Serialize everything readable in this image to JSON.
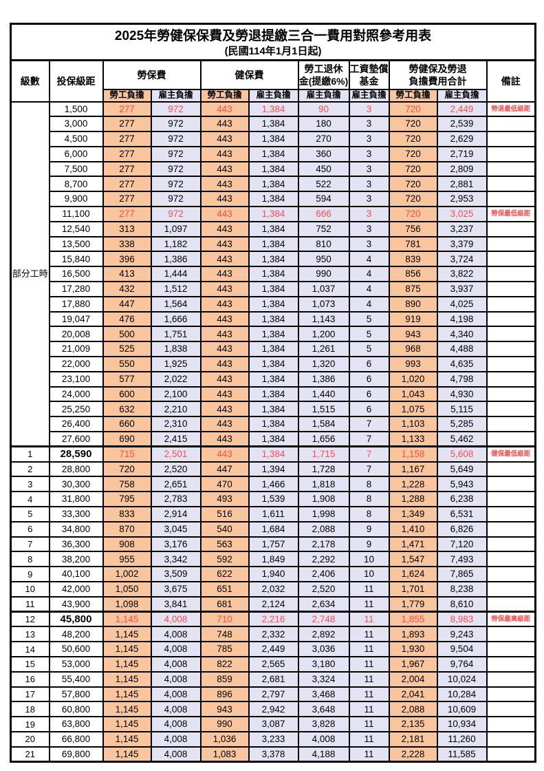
{
  "page": {
    "title": "2025年勞健保保費及勞退提繳三合一費用對照參考用表",
    "subtitle": "(民國114年1月1日起)"
  },
  "colors": {
    "employee_bg": "#F9C59C",
    "employer_bg": "#E3E3F3",
    "highlight_red": "#FF4C4C"
  },
  "table": {
    "headers": {
      "level": "級數",
      "salary": "投保級距",
      "labor_insurance": "勞保費",
      "health_insurance": "健保費",
      "pension_line1": "勞工退休",
      "pension_line2": "金(提繳6%)",
      "wage_fund_line1": "工資墊償",
      "wage_fund_line2": "基金",
      "total_line1": "勞健保及勞退",
      "total_line2": "負擔費用合計",
      "remark": "備註",
      "employee": "勞工負擔",
      "employer": "雇主負擔"
    },
    "group": {
      "label": "部分工時",
      "rowspan": 23
    },
    "rows": [
      {
        "level": "",
        "salary": "1,500",
        "li_emp": "277",
        "li_er": "972",
        "hi_emp": "443",
        "hi_er": "1,384",
        "pr_er": "90",
        "wf_er": "3",
        "tot_emp": "720",
        "tot_er": "2,449",
        "note": "勞退最低級距",
        "red": true
      },
      {
        "level": "",
        "salary": "3,000",
        "li_emp": "277",
        "li_er": "972",
        "hi_emp": "443",
        "hi_er": "1,384",
        "pr_er": "180",
        "wf_er": "3",
        "tot_emp": "720",
        "tot_er": "2,539",
        "note": ""
      },
      {
        "level": "",
        "salary": "4,500",
        "li_emp": "277",
        "li_er": "972",
        "hi_emp": "443",
        "hi_er": "1,384",
        "pr_er": "270",
        "wf_er": "3",
        "tot_emp": "720",
        "tot_er": "2,629",
        "note": ""
      },
      {
        "level": "",
        "salary": "6,000",
        "li_emp": "277",
        "li_er": "972",
        "hi_emp": "443",
        "hi_er": "1,384",
        "pr_er": "360",
        "wf_er": "3",
        "tot_emp": "720",
        "tot_er": "2,719",
        "note": ""
      },
      {
        "level": "",
        "salary": "7,500",
        "li_emp": "277",
        "li_er": "972",
        "hi_emp": "443",
        "hi_er": "1,384",
        "pr_er": "450",
        "wf_er": "3",
        "tot_emp": "720",
        "tot_er": "2,809",
        "note": ""
      },
      {
        "level": "",
        "salary": "8,700",
        "li_emp": "277",
        "li_er": "972",
        "hi_emp": "443",
        "hi_er": "1,384",
        "pr_er": "522",
        "wf_er": "3",
        "tot_emp": "720",
        "tot_er": "2,881",
        "note": ""
      },
      {
        "level": "",
        "salary": "9,900",
        "li_emp": "277",
        "li_er": "972",
        "hi_emp": "443",
        "hi_er": "1,384",
        "pr_er": "594",
        "wf_er": "3",
        "tot_emp": "720",
        "tot_er": "2,953",
        "note": ""
      },
      {
        "level": "",
        "salary": "11,100",
        "li_emp": "277",
        "li_er": "972",
        "hi_emp": "443",
        "hi_er": "1,384",
        "pr_er": "666",
        "wf_er": "3",
        "tot_emp": "720",
        "tot_er": "3,025",
        "note": "勞保最低級距",
        "red": true
      },
      {
        "level": "",
        "salary": "12,540",
        "li_emp": "313",
        "li_er": "1,097",
        "hi_emp": "443",
        "hi_er": "1,384",
        "pr_er": "752",
        "wf_er": "3",
        "tot_emp": "756",
        "tot_er": "3,237",
        "note": ""
      },
      {
        "level": "",
        "salary": "13,500",
        "li_emp": "338",
        "li_er": "1,182",
        "hi_emp": "443",
        "hi_er": "1,384",
        "pr_er": "810",
        "wf_er": "3",
        "tot_emp": "781",
        "tot_er": "3,379",
        "note": ""
      },
      {
        "level": "",
        "salary": "15,840",
        "li_emp": "396",
        "li_er": "1,386",
        "hi_emp": "443",
        "hi_er": "1,384",
        "pr_er": "950",
        "wf_er": "4",
        "tot_emp": "839",
        "tot_er": "3,724",
        "note": ""
      },
      {
        "level": "",
        "salary": "16,500",
        "li_emp": "413",
        "li_er": "1,444",
        "hi_emp": "443",
        "hi_er": "1,384",
        "pr_er": "990",
        "wf_er": "4",
        "tot_emp": "856",
        "tot_er": "3,822",
        "note": ""
      },
      {
        "level": "",
        "salary": "17,280",
        "li_emp": "432",
        "li_er": "1,512",
        "hi_emp": "443",
        "hi_er": "1,384",
        "pr_er": "1,037",
        "wf_er": "4",
        "tot_emp": "875",
        "tot_er": "3,937",
        "note": ""
      },
      {
        "level": "",
        "salary": "17,880",
        "li_emp": "447",
        "li_er": "1,564",
        "hi_emp": "443",
        "hi_er": "1,384",
        "pr_er": "1,073",
        "wf_er": "4",
        "tot_emp": "890",
        "tot_er": "4,025",
        "note": ""
      },
      {
        "level": "",
        "salary": "19,047",
        "li_emp": "476",
        "li_er": "1,666",
        "hi_emp": "443",
        "hi_er": "1,384",
        "pr_er": "1,143",
        "wf_er": "5",
        "tot_emp": "919",
        "tot_er": "4,198",
        "note": ""
      },
      {
        "level": "",
        "salary": "20,008",
        "li_emp": "500",
        "li_er": "1,751",
        "hi_emp": "443",
        "hi_er": "1,384",
        "pr_er": "1,200",
        "wf_er": "5",
        "tot_emp": "943",
        "tot_er": "4,340",
        "note": ""
      },
      {
        "level": "",
        "salary": "21,009",
        "li_emp": "525",
        "li_er": "1,838",
        "hi_emp": "443",
        "hi_er": "1,384",
        "pr_er": "1,261",
        "wf_er": "5",
        "tot_emp": "968",
        "tot_er": "4,488",
        "note": ""
      },
      {
        "level": "",
        "salary": "22,000",
        "li_emp": "550",
        "li_er": "1,925",
        "hi_emp": "443",
        "hi_er": "1,384",
        "pr_er": "1,320",
        "wf_er": "6",
        "tot_emp": "993",
        "tot_er": "4,635",
        "note": ""
      },
      {
        "level": "",
        "salary": "23,100",
        "li_emp": "577",
        "li_er": "2,022",
        "hi_emp": "443",
        "hi_er": "1,384",
        "pr_er": "1,386",
        "wf_er": "6",
        "tot_emp": "1,020",
        "tot_er": "4,798",
        "note": ""
      },
      {
        "level": "",
        "salary": "24,000",
        "li_emp": "600",
        "li_er": "2,100",
        "hi_emp": "443",
        "hi_er": "1,384",
        "pr_er": "1,440",
        "wf_er": "6",
        "tot_emp": "1,043",
        "tot_er": "4,930",
        "note": ""
      },
      {
        "level": "",
        "salary": "25,250",
        "li_emp": "632",
        "li_er": "2,210",
        "hi_emp": "443",
        "hi_er": "1,384",
        "pr_er": "1,515",
        "wf_er": "6",
        "tot_emp": "1,075",
        "tot_er": "5,115",
        "note": ""
      },
      {
        "level": "",
        "salary": "26,400",
        "li_emp": "660",
        "li_er": "2,310",
        "hi_emp": "443",
        "hi_er": "1,384",
        "pr_er": "1,584",
        "wf_er": "7",
        "tot_emp": "1,103",
        "tot_er": "5,285",
        "note": ""
      },
      {
        "level": "",
        "salary": "27,600",
        "li_emp": "690",
        "li_er": "2,415",
        "hi_emp": "443",
        "hi_er": "1,384",
        "pr_er": "1,656",
        "wf_er": "7",
        "tot_emp": "1,133",
        "tot_er": "5,462",
        "note": ""
      },
      {
        "level": "1",
        "salary": "28,590",
        "li_emp": "715",
        "li_er": "2,501",
        "hi_emp": "443",
        "hi_er": "1,384",
        "pr_er": "1,715",
        "wf_er": "7",
        "tot_emp": "1,158",
        "tot_er": "5,608",
        "note": "健保最低級距",
        "red": true,
        "salary_bold": true,
        "section": true
      },
      {
        "level": "2",
        "salary": "28,800",
        "li_emp": "720",
        "li_er": "2,520",
        "hi_emp": "447",
        "hi_er": "1,394",
        "pr_er": "1,728",
        "wf_er": "7",
        "tot_emp": "1,167",
        "tot_er": "5,649",
        "note": ""
      },
      {
        "level": "3",
        "salary": "30,300",
        "li_emp": "758",
        "li_er": "2,651",
        "hi_emp": "470",
        "hi_er": "1,466",
        "pr_er": "1,818",
        "wf_er": "8",
        "tot_emp": "1,228",
        "tot_er": "5,943",
        "note": ""
      },
      {
        "level": "4",
        "salary": "31,800",
        "li_emp": "795",
        "li_er": "2,783",
        "hi_emp": "493",
        "hi_er": "1,539",
        "pr_er": "1,908",
        "wf_er": "8",
        "tot_emp": "1,288",
        "tot_er": "6,238",
        "note": ""
      },
      {
        "level": "5",
        "salary": "33,300",
        "li_emp": "833",
        "li_er": "2,914",
        "hi_emp": "516",
        "hi_er": "1,611",
        "pr_er": "1,998",
        "wf_er": "8",
        "tot_emp": "1,349",
        "tot_er": "6,531",
        "note": ""
      },
      {
        "level": "6",
        "salary": "34,800",
        "li_emp": "870",
        "li_er": "3,045",
        "hi_emp": "540",
        "hi_er": "1,684",
        "pr_er": "2,088",
        "wf_er": "9",
        "tot_emp": "1,410",
        "tot_er": "6,826",
        "note": ""
      },
      {
        "level": "7",
        "salary": "36,300",
        "li_emp": "908",
        "li_er": "3,176",
        "hi_emp": "563",
        "hi_er": "1,757",
        "pr_er": "2,178",
        "wf_er": "9",
        "tot_emp": "1,471",
        "tot_er": "7,120",
        "note": ""
      },
      {
        "level": "8",
        "salary": "38,200",
        "li_emp": "955",
        "li_er": "3,342",
        "hi_emp": "592",
        "hi_er": "1,849",
        "pr_er": "2,292",
        "wf_er": "10",
        "tot_emp": "1,547",
        "tot_er": "7,493",
        "note": ""
      },
      {
        "level": "9",
        "salary": "40,100",
        "li_emp": "1,002",
        "li_er": "3,509",
        "hi_emp": "622",
        "hi_er": "1,940",
        "pr_er": "2,406",
        "wf_er": "10",
        "tot_emp": "1,624",
        "tot_er": "7,865",
        "note": ""
      },
      {
        "level": "10",
        "salary": "42,000",
        "li_emp": "1,050",
        "li_er": "3,675",
        "hi_emp": "651",
        "hi_er": "2,032",
        "pr_er": "2,520",
        "wf_er": "11",
        "tot_emp": "1,701",
        "tot_er": "8,238",
        "note": ""
      },
      {
        "level": "11",
        "salary": "43,900",
        "li_emp": "1,098",
        "li_er": "3,841",
        "hi_emp": "681",
        "hi_er": "2,124",
        "pr_er": "2,634",
        "wf_er": "11",
        "tot_emp": "1,779",
        "tot_er": "8,610",
        "note": ""
      },
      {
        "level": "12",
        "salary": "45,800",
        "li_emp": "1,145",
        "li_er": "4,008",
        "hi_emp": "710",
        "hi_er": "2,216",
        "pr_er": "2,748",
        "wf_er": "11",
        "tot_emp": "1,855",
        "tot_er": "8,983",
        "note": "勞保最高級距",
        "red": true,
        "salary_bold": true,
        "section": true
      },
      {
        "level": "13",
        "salary": "48,200",
        "li_emp": "1,145",
        "li_er": "4,008",
        "hi_emp": "748",
        "hi_er": "2,332",
        "pr_er": "2,892",
        "wf_er": "11",
        "tot_emp": "1,893",
        "tot_er": "9,243",
        "note": ""
      },
      {
        "level": "14",
        "salary": "50,600",
        "li_emp": "1,145",
        "li_er": "4,008",
        "hi_emp": "785",
        "hi_er": "2,449",
        "pr_er": "3,036",
        "wf_er": "11",
        "tot_emp": "1,930",
        "tot_er": "9,504",
        "note": ""
      },
      {
        "level": "15",
        "salary": "53,000",
        "li_emp": "1,145",
        "li_er": "4,008",
        "hi_emp": "822",
        "hi_er": "2,565",
        "pr_er": "3,180",
        "wf_er": "11",
        "tot_emp": "1,967",
        "tot_er": "9,764",
        "note": ""
      },
      {
        "level": "16",
        "salary": "55,400",
        "li_emp": "1,145",
        "li_er": "4,008",
        "hi_emp": "859",
        "hi_er": "2,681",
        "pr_er": "3,324",
        "wf_er": "11",
        "tot_emp": "2,004",
        "tot_er": "10,024",
        "note": ""
      },
      {
        "level": "17",
        "salary": "57,800",
        "li_emp": "1,145",
        "li_er": "4,008",
        "hi_emp": "896",
        "hi_er": "2,797",
        "pr_er": "3,468",
        "wf_er": "11",
        "tot_emp": "2,041",
        "tot_er": "10,284",
        "note": ""
      },
      {
        "level": "18",
        "salary": "60,800",
        "li_emp": "1,145",
        "li_er": "4,008",
        "hi_emp": "943",
        "hi_er": "2,942",
        "pr_er": "3,648",
        "wf_er": "11",
        "tot_emp": "2,088",
        "tot_er": "10,609",
        "note": ""
      },
      {
        "level": "19",
        "salary": "63,800",
        "li_emp": "1,145",
        "li_er": "4,008",
        "hi_emp": "990",
        "hi_er": "3,087",
        "pr_er": "3,828",
        "wf_er": "11",
        "tot_emp": "2,135",
        "tot_er": "10,934",
        "note": ""
      },
      {
        "level": "20",
        "salary": "66,800",
        "li_emp": "1,145",
        "li_er": "4,008",
        "hi_emp": "1,036",
        "hi_er": "3,233",
        "pr_er": "4,008",
        "wf_er": "11",
        "tot_emp": "2,181",
        "tot_er": "11,260",
        "note": ""
      },
      {
        "level": "21",
        "salary": "69,800",
        "li_emp": "1,145",
        "li_er": "4,008",
        "hi_emp": "1,083",
        "hi_er": "3,378",
        "pr_er": "4,188",
        "wf_er": "11",
        "tot_emp": "2,228",
        "tot_er": "11,585",
        "note": ""
      }
    ]
  }
}
